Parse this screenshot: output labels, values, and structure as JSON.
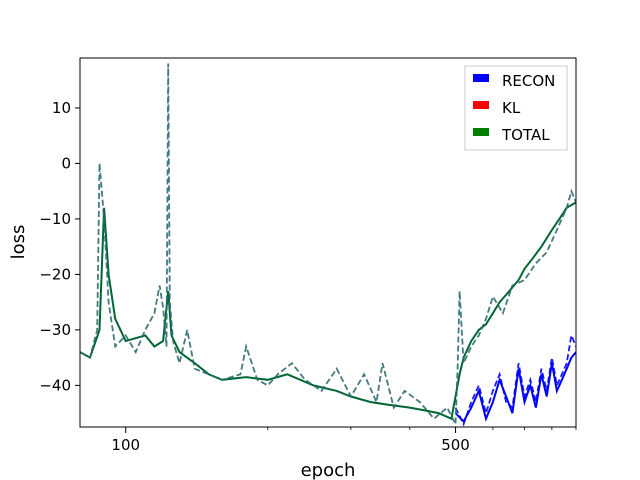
{
  "chart_data": {
    "type": "line",
    "title": "",
    "xlabel": "epoch",
    "ylabel": "loss",
    "xscale": "log",
    "xlim": [
      80,
      900
    ],
    "ylim": [
      -47.5,
      19
    ],
    "grid": false,
    "legend_position": "upper-right",
    "x_ticks": [
      {
        "value": 100,
        "label": "100"
      },
      {
        "value": 500,
        "label": "500"
      }
    ],
    "x_minor_ticks": [
      200,
      300,
      400,
      600,
      700,
      800,
      900
    ],
    "y_ticks": [
      {
        "value": 10,
        "label": "10"
      },
      {
        "value": 0,
        "label": "0"
      },
      {
        "value": -10,
        "label": "−10"
      },
      {
        "value": -20,
        "label": "−20"
      },
      {
        "value": -30,
        "label": "−30"
      },
      {
        "value": -40,
        "label": "−40"
      }
    ],
    "legend": [
      {
        "label": "RECON",
        "color": "#0000ff"
      },
      {
        "label": "KL",
        "color": "#ff0000"
      },
      {
        "label": "TOTAL",
        "color": "#008000"
      }
    ],
    "series": [
      {
        "name": "RECON",
        "color": "#0000ff",
        "style": "solid",
        "x": [
          500,
          520,
          540,
          560,
          580,
          600,
          620,
          640,
          660,
          680,
          700,
          720,
          740,
          760,
          780,
          800,
          820,
          840,
          860,
          880,
          900
        ],
        "y": [
          -45,
          -46.5,
          -44,
          -41,
          -46,
          -43,
          -39,
          -42,
          -45,
          -37,
          -43,
          -40,
          -44,
          -38,
          -42,
          -36,
          -41,
          -39,
          -37,
          -35,
          -34
        ]
      },
      {
        "name": "RECON",
        "color": "#0000ff",
        "style": "dashed",
        "x": [
          500,
          520,
          540,
          560,
          580,
          600,
          620,
          640,
          660,
          680,
          700,
          720,
          740,
          760,
          780,
          800,
          820,
          840,
          860,
          880,
          900
        ],
        "y": [
          -44,
          -47,
          -43,
          -40,
          -45,
          -41,
          -38,
          -43,
          -44,
          -36,
          -42,
          -39,
          -43,
          -37,
          -41,
          -35,
          -40,
          -38,
          -36,
          -31,
          -33
        ]
      },
      {
        "name": "TOTAL",
        "color": "#006633",
        "style": "solid",
        "x": [
          80,
          84,
          88,
          90,
          92,
          95,
          100,
          110,
          115,
          120,
          123,
          125,
          130,
          140,
          150,
          160,
          180,
          200,
          220,
          250,
          280,
          300,
          330,
          360,
          400,
          430,
          460,
          490,
          500,
          510,
          520,
          540,
          560,
          580,
          600,
          620,
          650,
          680,
          700,
          730,
          760,
          800,
          830,
          860,
          900
        ],
        "y": [
          -34,
          -35,
          -30,
          -8,
          -20,
          -28,
          -32,
          -31,
          -33,
          -32,
          -23,
          -31,
          -34,
          -36,
          -38,
          -39,
          -38.5,
          -39,
          -38,
          -40,
          -41,
          -42,
          -43,
          -43.5,
          -44,
          -44.5,
          -45,
          -46,
          -42,
          -38,
          -35,
          -32,
          -30,
          -29,
          -27,
          -25,
          -23,
          -21,
          -19,
          -17,
          -15,
          -12,
          -10,
          -8,
          -7
        ]
      },
      {
        "name": "TOTAL",
        "color": "#2e6b70",
        "style": "dashed",
        "x": [
          80,
          84,
          87,
          88,
          90,
          92,
          95,
          100,
          105,
          110,
          115,
          118,
          120,
          122,
          123,
          124,
          126,
          130,
          135,
          140,
          150,
          160,
          175,
          180,
          190,
          200,
          210,
          225,
          240,
          260,
          280,
          300,
          320,
          340,
          350,
          370,
          390,
          420,
          450,
          480,
          500,
          505,
          510,
          520,
          540,
          560,
          580,
          600,
          630,
          660,
          700,
          740,
          780,
          820,
          860,
          880,
          900
        ],
        "y": [
          -34,
          -35,
          -30,
          0,
          -10,
          -25,
          -33,
          -31,
          -34,
          -30,
          -27,
          -22,
          -26,
          -33,
          18,
          -25,
          -32,
          -36,
          -30,
          -37,
          -38,
          -39,
          -38,
          -33,
          -39,
          -40,
          -38,
          -36,
          -39,
          -41,
          -37,
          -42,
          -38,
          -43,
          -36,
          -44,
          -41,
          -43,
          -46,
          -44,
          -47,
          -37,
          -23,
          -36,
          -33,
          -31,
          -28,
          -24,
          -27,
          -22,
          -21,
          -18,
          -16,
          -12,
          -8,
          -5,
          -7
        ]
      }
    ]
  }
}
